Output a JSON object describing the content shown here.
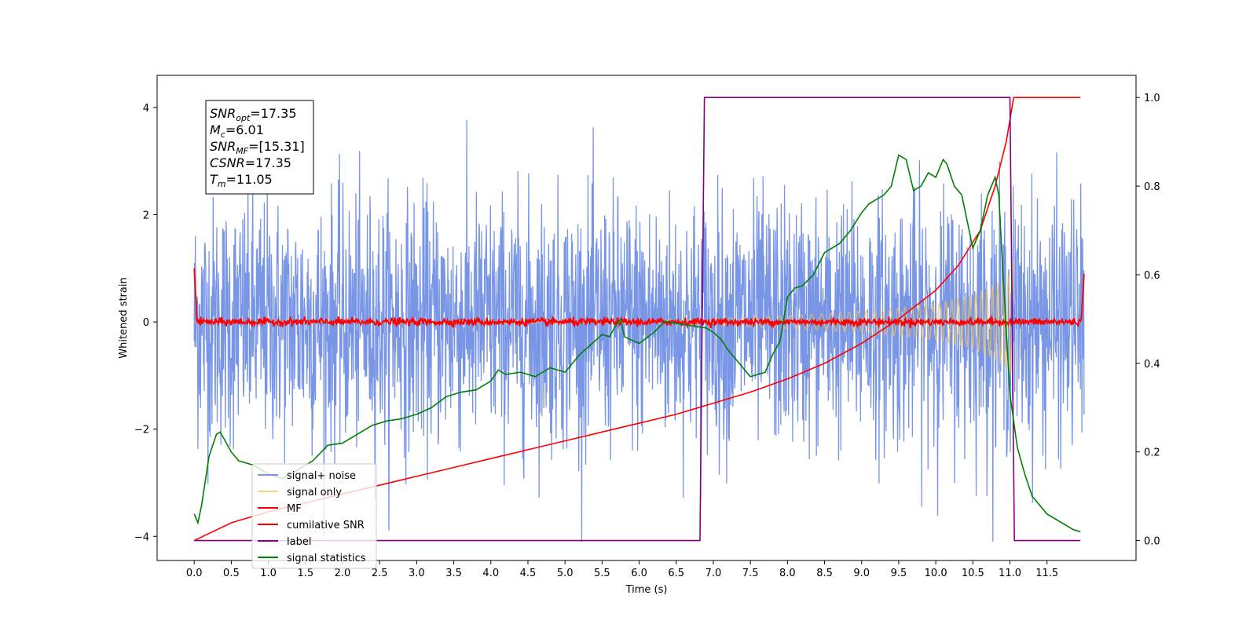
{
  "chart_data": {
    "type": "line",
    "xlabel": "Time (s)",
    "ylabel_left": "Whitened strain",
    "ylabel_right": "",
    "xlim": [
      -0.5,
      12.7
    ],
    "ylim_left": [
      -4.45,
      4.6
    ],
    "ylim_right": [
      -0.045,
      1.05
    ],
    "x_ticks": [
      "0.0",
      "0.5",
      "1.0",
      "1.5",
      "2.0",
      "2.5",
      "3.0",
      "3.5",
      "4.0",
      "4.5",
      "5.0",
      "5.5",
      "6.0",
      "6.5",
      "7.0",
      "7.5",
      "8.0",
      "8.5",
      "9.0",
      "9.5",
      "10.0",
      "10.5",
      "11.0",
      "11.5"
    ],
    "y_ticks_left": [
      -4,
      -2,
      0,
      2,
      4
    ],
    "y_ticks_right": [
      "0.0",
      "0.2",
      "0.4",
      "0.6",
      "0.8",
      "1.0"
    ],
    "grid": false,
    "legend_position": "lower-left",
    "annotation": {
      "lines": [
        {
          "sym": "SNR",
          "sub": "opt",
          "value": "=17.35"
        },
        {
          "sym": "M",
          "sub": "c",
          "value": "=6.01"
        },
        {
          "sym": "SNR",
          "sub": "MF",
          "value": "=[15.31]"
        },
        {
          "sym": "CSNR",
          "sub": "",
          "value": "=17.35"
        },
        {
          "sym": "T",
          "sub": "m",
          "value": "=11.05"
        }
      ]
    },
    "series": [
      {
        "name": "signal+ noise",
        "color": "#7895e6",
        "axis": "left",
        "style": "noise band, amplitude ~1.2 std, extremes about -4.1 to 4.15",
        "range": [
          0.0,
          12.0
        ]
      },
      {
        "name": "signal only",
        "color": "#f3c35c",
        "axis": "left",
        "style": "chirp envelope growing to ~1.1 at 11.0 s",
        "envelope": {
          "x": [
            0.0,
            6.0,
            7.0,
            8.0,
            9.0,
            9.5,
            10.0,
            10.5,
            10.8,
            11.0,
            11.05
          ],
          "y": [
            0.0,
            0.03,
            0.07,
            0.12,
            0.2,
            0.26,
            0.34,
            0.5,
            0.7,
            0.9,
            1.15
          ]
        }
      },
      {
        "name": "MF",
        "color": "#ff0000",
        "axis": "left",
        "style": "near-zero noise with edge spikes",
        "start_value": 1.0,
        "end_value": 0.9
      },
      {
        "name": "cumilative SNR",
        "color": "#ff0000",
        "axis": "right",
        "x": [
          0.0,
          0.5,
          1.0,
          1.5,
          2.0,
          2.5,
          3.0,
          3.5,
          4.0,
          4.5,
          5.0,
          5.5,
          6.0,
          6.5,
          7.0,
          7.5,
          8.0,
          8.5,
          9.0,
          9.5,
          10.0,
          10.3,
          10.6,
          10.8,
          10.95,
          11.05,
          11.5,
          11.95
        ],
        "y": [
          0.0,
          0.04,
          0.065,
          0.085,
          0.105,
          0.125,
          0.145,
          0.165,
          0.185,
          0.205,
          0.225,
          0.245,
          0.265,
          0.285,
          0.31,
          0.335,
          0.365,
          0.4,
          0.445,
          0.5,
          0.565,
          0.62,
          0.7,
          0.8,
          0.9,
          1.0,
          1.0,
          1.0
        ]
      },
      {
        "name": "label",
        "color": "#800080",
        "axis": "right",
        "x": [
          0.0,
          6.82,
          6.88,
          11.0,
          11.06,
          11.95
        ],
        "y": [
          0.0,
          0.0,
          1.0,
          1.0,
          0.0,
          0.0
        ]
      },
      {
        "name": "signal statistics",
        "color": "#008000",
        "axis": "right",
        "x": [
          0.0,
          0.05,
          0.1,
          0.2,
          0.3,
          0.35,
          0.4,
          0.45,
          0.5,
          0.6,
          0.8,
          1.0,
          1.2,
          1.4,
          1.6,
          1.8,
          2.0,
          2.2,
          2.4,
          2.6,
          2.8,
          3.0,
          3.2,
          3.4,
          3.6,
          3.8,
          4.0,
          4.1,
          4.2,
          4.4,
          4.6,
          4.8,
          5.0,
          5.2,
          5.4,
          5.5,
          5.6,
          5.7,
          5.75,
          5.8,
          6.0,
          6.2,
          6.35,
          6.5,
          6.7,
          6.9,
          7.0,
          7.1,
          7.2,
          7.3,
          7.5,
          7.7,
          7.8,
          7.9,
          8.0,
          8.1,
          8.2,
          8.35,
          8.5,
          8.7,
          8.85,
          9.0,
          9.1,
          9.2,
          9.3,
          9.4,
          9.5,
          9.6,
          9.7,
          9.8,
          9.9,
          10.0,
          10.1,
          10.15,
          10.25,
          10.35,
          10.5,
          10.6,
          10.7,
          10.8,
          10.85,
          10.9,
          11.0,
          11.1,
          11.2,
          11.3,
          11.5,
          11.7,
          11.85,
          11.95
        ],
        "y": [
          0.06,
          0.04,
          0.08,
          0.19,
          0.24,
          0.245,
          0.23,
          0.215,
          0.2,
          0.18,
          0.17,
          0.15,
          0.14,
          0.16,
          0.18,
          0.215,
          0.22,
          0.24,
          0.26,
          0.27,
          0.275,
          0.285,
          0.3,
          0.325,
          0.335,
          0.34,
          0.36,
          0.385,
          0.375,
          0.38,
          0.37,
          0.39,
          0.38,
          0.42,
          0.45,
          0.465,
          0.46,
          0.49,
          0.5,
          0.46,
          0.445,
          0.47,
          0.495,
          0.49,
          0.485,
          0.48,
          0.47,
          0.455,
          0.43,
          0.41,
          0.37,
          0.38,
          0.42,
          0.45,
          0.55,
          0.57,
          0.575,
          0.6,
          0.65,
          0.67,
          0.7,
          0.74,
          0.76,
          0.77,
          0.78,
          0.8,
          0.87,
          0.86,
          0.79,
          0.8,
          0.83,
          0.82,
          0.86,
          0.85,
          0.8,
          0.78,
          0.66,
          0.7,
          0.78,
          0.82,
          0.78,
          0.62,
          0.33,
          0.21,
          0.15,
          0.1,
          0.06,
          0.04,
          0.025,
          0.02
        ]
      }
    ]
  }
}
